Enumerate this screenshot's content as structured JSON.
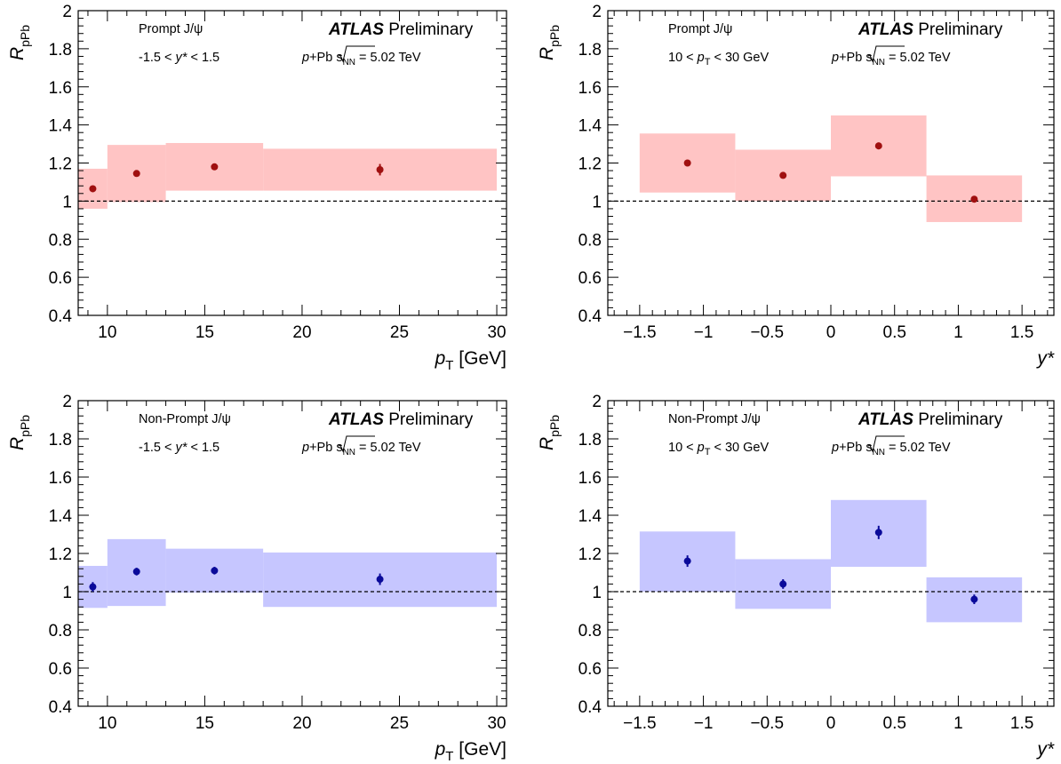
{
  "colors": {
    "prompt_band": "#ffc4c4",
    "prompt_point": "#a01010",
    "nonprompt_band": "#c6c6ff",
    "nonprompt_point": "#0a0a9a"
  },
  "chart_data": [
    {
      "type": "scatter",
      "panel": "top-left",
      "color_scheme": "prompt",
      "xlabel": "p_T [GeV]",
      "xlabel_main": "p",
      "xlabel_sub": "T",
      "xlabel_unit": " [GeV]",
      "ylabel_main": "R",
      "ylabel_sub": "pPb",
      "xlim": [
        8.5,
        30.5
      ],
      "ylim": [
        0.4,
        2.0
      ],
      "xticks": [
        10,
        15,
        20,
        25,
        30
      ],
      "xtick_labels": [
        "10",
        "15",
        "20",
        "25",
        "30"
      ],
      "yticks": [
        0.4,
        0.6,
        0.8,
        1.0,
        1.2,
        1.4,
        1.6,
        1.8,
        2.0
      ],
      "ytick_labels": [
        "0.4",
        "0.6",
        "0.8",
        "1",
        "1.2",
        "1.4",
        "1.6",
        "1.8",
        "2"
      ],
      "reference_line": 1.0,
      "annotation_line1": "Prompt J/ψ",
      "annotation_line2_pre": "-1.5 < ",
      "annotation_line2_var": "y*",
      "annotation_line2_post": " < 1.5",
      "atlas_label": "ATLAS",
      "atlas_suffix": "Preliminary",
      "energy_pre": "p",
      "energy_mid": "+Pb",
      "energy_s": "s",
      "energy_sub": "NN",
      "energy_post": " = 5.02 TeV",
      "points": [
        {
          "x": 9.25,
          "y": 1.065,
          "err": 0.012,
          "sys_lo": 0.96,
          "sys_hi": 1.17,
          "bin": [
            8.5,
            10
          ]
        },
        {
          "x": 11.5,
          "y": 1.145,
          "err": 0.012,
          "sys_lo": 0.995,
          "sys_hi": 1.295,
          "bin": [
            10,
            13
          ]
        },
        {
          "x": 15.5,
          "y": 1.18,
          "err": 0.015,
          "sys_lo": 1.055,
          "sys_hi": 1.305,
          "bin": [
            13,
            18
          ]
        },
        {
          "x": 24.0,
          "y": 1.165,
          "err": 0.03,
          "sys_lo": 1.055,
          "sys_hi": 1.275,
          "bin": [
            18,
            30
          ]
        }
      ]
    },
    {
      "type": "scatter",
      "panel": "top-right",
      "color_scheme": "prompt",
      "xlabel": "y*",
      "xlabel_main": "y*",
      "xlabel_sub": "",
      "xlabel_unit": "",
      "ylabel_main": "R",
      "ylabel_sub": "pPb",
      "xlim": [
        -1.75,
        1.75
      ],
      "ylim": [
        0.4,
        2.0
      ],
      "xticks": [
        -1.5,
        -1.0,
        -0.5,
        0.0,
        0.5,
        1.0,
        1.5
      ],
      "xtick_labels": [
        "−1.5",
        "−1",
        "−0.5",
        "0",
        "0.5",
        "1",
        "1.5"
      ],
      "yticks": [
        0.4,
        0.6,
        0.8,
        1.0,
        1.2,
        1.4,
        1.6,
        1.8,
        2.0
      ],
      "ytick_labels": [
        "0.4",
        "0.6",
        "0.8",
        "1",
        "1.2",
        "1.4",
        "1.6",
        "1.8",
        "2"
      ],
      "reference_line": 1.0,
      "annotation_line1": "Prompt J/ψ",
      "annotation_line2_pre": "10 < ",
      "annotation_line2_var": "p",
      "annotation_line2_sub": "T",
      "annotation_line2_post": " < 30 GeV",
      "atlas_label": "ATLAS",
      "atlas_suffix": "Preliminary",
      "energy_pre": "p",
      "energy_mid": "+Pb",
      "energy_s": "s",
      "energy_sub": "NN",
      "energy_post": " = 5.02 TeV",
      "points": [
        {
          "x": -1.125,
          "y": 1.2,
          "err": 0.015,
          "sys_lo": 1.045,
          "sys_hi": 1.355,
          "bin": [
            -1.5,
            -0.75
          ]
        },
        {
          "x": -0.375,
          "y": 1.135,
          "err": 0.015,
          "sys_lo": 1.0,
          "sys_hi": 1.27,
          "bin": [
            -0.75,
            0.0
          ]
        },
        {
          "x": 0.375,
          "y": 1.29,
          "err": 0.018,
          "sys_lo": 1.13,
          "sys_hi": 1.45,
          "bin": [
            0.0,
            0.75
          ]
        },
        {
          "x": 1.125,
          "y": 1.01,
          "err": 0.012,
          "sys_lo": 0.89,
          "sys_hi": 1.135,
          "bin": [
            0.75,
            1.5
          ]
        }
      ]
    },
    {
      "type": "scatter",
      "panel": "bottom-left",
      "color_scheme": "nonprompt",
      "xlabel": "p_T [GeV]",
      "xlabel_main": "p",
      "xlabel_sub": "T",
      "xlabel_unit": " [GeV]",
      "ylabel_main": "R",
      "ylabel_sub": "pPb",
      "xlim": [
        8.5,
        30.5
      ],
      "ylim": [
        0.4,
        2.0
      ],
      "xticks": [
        10,
        15,
        20,
        25,
        30
      ],
      "xtick_labels": [
        "10",
        "15",
        "20",
        "25",
        "30"
      ],
      "yticks": [
        0.4,
        0.6,
        0.8,
        1.0,
        1.2,
        1.4,
        1.6,
        1.8,
        2.0
      ],
      "ytick_labels": [
        "0.4",
        "0.6",
        "0.8",
        "1",
        "1.2",
        "1.4",
        "1.6",
        "1.8",
        "2"
      ],
      "reference_line": 1.0,
      "annotation_line1": "Non-Prompt J/ψ",
      "annotation_line2_pre": "-1.5 < ",
      "annotation_line2_var": "y*",
      "annotation_line2_post": " < 1.5",
      "atlas_label": "ATLAS",
      "atlas_suffix": "Preliminary",
      "energy_pre": "p",
      "energy_mid": "+Pb",
      "energy_s": "s",
      "energy_sub": "NN",
      "energy_post": " = 5.02 TeV",
      "points": [
        {
          "x": 9.25,
          "y": 1.025,
          "err": 0.025,
          "sys_lo": 0.915,
          "sys_hi": 1.135,
          "bin": [
            8.5,
            10
          ]
        },
        {
          "x": 11.5,
          "y": 1.105,
          "err": 0.02,
          "sys_lo": 0.925,
          "sys_hi": 1.275,
          "bin": [
            10,
            13
          ]
        },
        {
          "x": 15.5,
          "y": 1.11,
          "err": 0.02,
          "sys_lo": 0.995,
          "sys_hi": 1.225,
          "bin": [
            13,
            18
          ]
        },
        {
          "x": 24.0,
          "y": 1.065,
          "err": 0.03,
          "sys_lo": 0.92,
          "sys_hi": 1.205,
          "bin": [
            18,
            30
          ]
        }
      ]
    },
    {
      "type": "scatter",
      "panel": "bottom-right",
      "color_scheme": "nonprompt",
      "xlabel": "y*",
      "xlabel_main": "y*",
      "xlabel_sub": "",
      "xlabel_unit": "",
      "ylabel_main": "R",
      "ylabel_sub": "pPb",
      "xlim": [
        -1.75,
        1.75
      ],
      "ylim": [
        0.4,
        2.0
      ],
      "xticks": [
        -1.5,
        -1.0,
        -0.5,
        0.0,
        0.5,
        1.0,
        1.5
      ],
      "xtick_labels": [
        "−1.5",
        "−1",
        "−0.5",
        "0",
        "0.5",
        "1",
        "1.5"
      ],
      "yticks": [
        0.4,
        0.6,
        0.8,
        1.0,
        1.2,
        1.4,
        1.6,
        1.8,
        2.0
      ],
      "ytick_labels": [
        "0.4",
        "0.6",
        "0.8",
        "1",
        "1.2",
        "1.4",
        "1.6",
        "1.8",
        "2"
      ],
      "reference_line": 1.0,
      "annotation_line1": "Non-Prompt J/ψ",
      "annotation_line2_pre": "10 < ",
      "annotation_line2_var": "p",
      "annotation_line2_sub": "T",
      "annotation_line2_post": " < 30 GeV",
      "atlas_label": "ATLAS",
      "atlas_suffix": "Preliminary",
      "energy_pre": "p",
      "energy_mid": "+Pb",
      "energy_s": "s",
      "energy_sub": "NN",
      "energy_post": " = 5.02 TeV",
      "points": [
        {
          "x": -1.125,
          "y": 1.16,
          "err": 0.03,
          "sys_lo": 1.0,
          "sys_hi": 1.315,
          "bin": [
            -1.5,
            -0.75
          ]
        },
        {
          "x": -0.375,
          "y": 1.04,
          "err": 0.025,
          "sys_lo": 0.91,
          "sys_hi": 1.17,
          "bin": [
            -0.75,
            0.0
          ]
        },
        {
          "x": 0.375,
          "y": 1.31,
          "err": 0.035,
          "sys_lo": 1.13,
          "sys_hi": 1.48,
          "bin": [
            0.0,
            0.75
          ]
        },
        {
          "x": 1.125,
          "y": 0.96,
          "err": 0.025,
          "sys_lo": 0.84,
          "sys_hi": 1.075,
          "bin": [
            0.75,
            1.5
          ]
        }
      ]
    }
  ]
}
